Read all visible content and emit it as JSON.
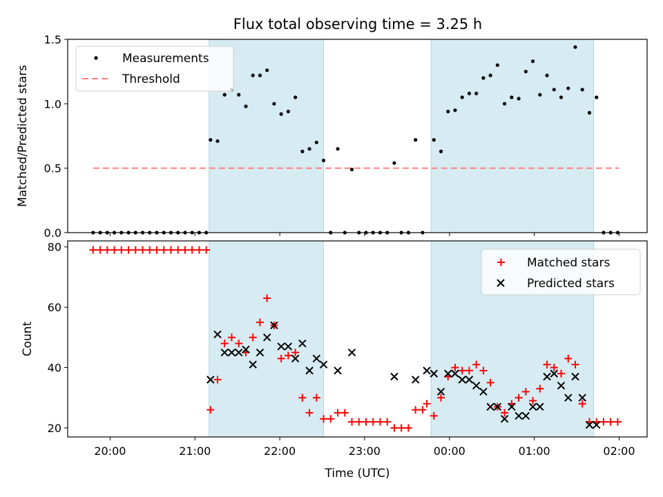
{
  "title": "Flux total observing time = 3.25 h",
  "colors": {
    "shade": "#add8e6",
    "measurements": "#000000",
    "threshold": "#ff7f7f",
    "matched": "#ff0000",
    "predicted": "#000000"
  },
  "chart_data": [
    {
      "type": "scatter",
      "ylabel": "Matched/Predicted stars",
      "xlim": [
        19.5,
        2.33
      ],
      "ylim": [
        0,
        1.5
      ],
      "yticks": [
        "0.0",
        "0.5",
        "1.0",
        "1.5"
      ],
      "legend_position": "upper-left",
      "legend": [
        "Measurements",
        "Threshold"
      ],
      "shaded_intervals": [
        [
          "21:10",
          "22:31"
        ],
        [
          "23:47",
          "01:42"
        ]
      ],
      "threshold": {
        "value": 0.5,
        "x_range": [
          "19:48",
          "02:00"
        ]
      },
      "series": [
        {
          "name": "Measurements",
          "x": [
            "19:48",
            "19:53",
            "19:58",
            "20:03",
            "20:08",
            "20:13",
            "20:18",
            "20:23",
            "20:28",
            "20:33",
            "20:38",
            "20:43",
            "20:48",
            "20:53",
            "20:58",
            "21:03",
            "21:08",
            "21:11",
            "21:16",
            "21:21",
            "21:26",
            "21:31",
            "21:36",
            "21:41",
            "21:46",
            "21:51",
            "21:56",
            "22:01",
            "22:06",
            "22:11",
            "22:16",
            "22:21",
            "22:26",
            "22:31",
            "22:36",
            "22:41",
            "22:46",
            "22:51",
            "22:56",
            "23:01",
            "23:06",
            "23:11",
            "23:16",
            "23:21",
            "23:26",
            "23:31",
            "23:36",
            "23:41",
            "23:49",
            "23:54",
            "23:59",
            "00:04",
            "00:09",
            "00:14",
            "00:19",
            "00:24",
            "00:29",
            "00:34",
            "00:39",
            "00:44",
            "00:49",
            "00:54",
            "00:59",
            "01:04",
            "01:09",
            "01:14",
            "01:19",
            "01:24",
            "01:29",
            "01:34",
            "01:39",
            "01:44",
            "01:49",
            "01:54",
            "01:59"
          ],
          "y": [
            0,
            0,
            0,
            0,
            0,
            0,
            0,
            0,
            0,
            0,
            0,
            0,
            0,
            0,
            0,
            0,
            0,
            0.72,
            0.71,
            1.07,
            1.11,
            1.07,
            0.98,
            1.22,
            1.22,
            1.26,
            1.0,
            0.92,
            0.94,
            1.05,
            0.63,
            0.65,
            0.7,
            0.56,
            0,
            0.65,
            0,
            0.49,
            0,
            0,
            0,
            0,
            0,
            0.54,
            0,
            0,
            0.72,
            0,
            0.72,
            0.63,
            0.94,
            0.95,
            1.05,
            1.08,
            1.08,
            1.2,
            1.22,
            1.3,
            1.0,
            1.05,
            1.04,
            1.25,
            1.33,
            1.07,
            1.22,
            1.11,
            1.05,
            1.12,
            1.44,
            1.11,
            0.93,
            1.05,
            0,
            0,
            0
          ]
        }
      ]
    },
    {
      "type": "scatter",
      "xlabel": "Time (UTC)",
      "ylabel": "Count",
      "xlim": [
        19.5,
        2.33
      ],
      "ylim": [
        17,
        82
      ],
      "xticks": [
        "20:00",
        "21:00",
        "22:00",
        "23:00",
        "00:00",
        "01:00",
        "02:00"
      ],
      "yticks": [
        "20",
        "40",
        "60",
        "80"
      ],
      "legend_position": "upper-right",
      "legend": [
        "Matched stars",
        "Predicted stars"
      ],
      "shaded_intervals": [
        [
          "21:10",
          "22:31"
        ],
        [
          "23:47",
          "01:42"
        ]
      ],
      "series": [
        {
          "name": "Matched stars",
          "marker": "+",
          "x": [
            "19:48",
            "19:53",
            "19:58",
            "20:03",
            "20:08",
            "20:13",
            "20:18",
            "20:23",
            "20:28",
            "20:33",
            "20:38",
            "20:43",
            "20:48",
            "20:53",
            "20:58",
            "21:03",
            "21:08",
            "21:11",
            "21:16",
            "21:21",
            "21:26",
            "21:31",
            "21:36",
            "21:41",
            "21:46",
            "21:51",
            "21:56",
            "22:01",
            "22:06",
            "22:11",
            "22:16",
            "22:21",
            "22:26",
            "22:31",
            "22:36",
            "22:41",
            "22:46",
            "22:51",
            "22:56",
            "23:01",
            "23:06",
            "23:11",
            "23:16",
            "23:21",
            "23:26",
            "23:31",
            "23:36",
            "23:41",
            "23:44",
            "23:49",
            "23:54",
            "23:59",
            "00:04",
            "00:09",
            "00:14",
            "00:19",
            "00:24",
            "00:29",
            "00:34",
            "00:39",
            "00:44",
            "00:49",
            "00:54",
            "00:59",
            "01:04",
            "01:09",
            "01:14",
            "01:19",
            "01:24",
            "01:29",
            "01:34",
            "01:39",
            "01:44",
            "01:49",
            "01:54",
            "01:59"
          ],
          "y": [
            79,
            79,
            79,
            79,
            79,
            79,
            79,
            79,
            79,
            79,
            79,
            79,
            79,
            79,
            79,
            79,
            79,
            26,
            36,
            48,
            50,
            48,
            45,
            50,
            55,
            63,
            54,
            43,
            44,
            45,
            30,
            25,
            30,
            23,
            23,
            25,
            25,
            22,
            22,
            22,
            22,
            22,
            22,
            20,
            20,
            20,
            26,
            26,
            28,
            24,
            30,
            37,
            40,
            39,
            39,
            41,
            39,
            35,
            27,
            25,
            28,
            30,
            32,
            29,
            33,
            41,
            40,
            38,
            43,
            41,
            28,
            22,
            22,
            22,
            22,
            22
          ]
        },
        {
          "name": "Predicted stars",
          "marker": "x",
          "x": [
            "21:11",
            "21:16",
            "21:21",
            "21:26",
            "21:31",
            "21:36",
            "21:41",
            "21:46",
            "21:51",
            "21:56",
            "22:01",
            "22:06",
            "22:11",
            "22:16",
            "22:21",
            "22:26",
            "22:31",
            "22:41",
            "22:51",
            "23:21",
            "23:36",
            "23:44",
            "23:49",
            "23:54",
            "23:59",
            "00:04",
            "00:09",
            "00:14",
            "00:19",
            "00:24",
            "00:29",
            "00:34",
            "00:39",
            "00:44",
            "00:49",
            "00:54",
            "00:59",
            "01:04",
            "01:09",
            "01:14",
            "01:19",
            "01:24",
            "01:29",
            "01:34",
            "01:39",
            "01:44"
          ],
          "y": [
            36,
            51,
            45,
            45,
            45,
            46,
            41,
            45,
            50,
            54,
            47,
            47,
            43,
            48,
            39,
            43,
            41,
            39,
            45,
            37,
            36,
            39,
            38,
            32,
            38,
            38,
            36,
            36,
            34,
            32,
            27,
            27,
            23,
            27,
            24,
            24,
            27,
            27,
            37,
            38,
            34,
            30,
            37,
            30,
            21,
            21
          ]
        }
      ]
    }
  ]
}
